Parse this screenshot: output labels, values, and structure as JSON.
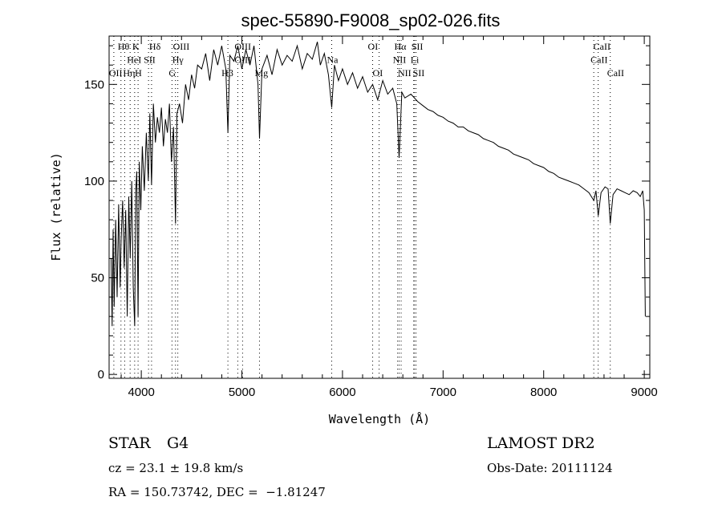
{
  "chart_data": {
    "type": "line",
    "title": "spec-55890-F9008_sp02-026.fits",
    "xlabel": "Wavelength (Å)",
    "ylabel": "Flux (relative)",
    "xlim": [
      3680,
      9055
    ],
    "ylim": [
      -2,
      175
    ],
    "xticks": [
      4000,
      5000,
      6000,
      7000,
      8000,
      9000
    ],
    "yticks": [
      0,
      50,
      100,
      150
    ],
    "grid": false,
    "series": [
      {
        "name": "flux",
        "x": [
          3700,
          3710,
          3720,
          3730,
          3745,
          3760,
          3775,
          3790,
          3800,
          3815,
          3830,
          3845,
          3860,
          3875,
          3890,
          3905,
          3920,
          3934,
          3945,
          3955,
          3968,
          3980,
          3995,
          4010,
          4030,
          4050,
          4070,
          4085,
          4102,
          4120,
          4140,
          4160,
          4180,
          4200,
          4220,
          4240,
          4260,
          4280,
          4300,
          4320,
          4340,
          4355,
          4380,
          4410,
          4440,
          4470,
          4500,
          4530,
          4560,
          4600,
          4640,
          4680,
          4720,
          4760,
          4800,
          4840,
          4861,
          4880,
          4920,
          4960,
          5000,
          5040,
          5080,
          5120,
          5160,
          5175,
          5200,
          5250,
          5300,
          5350,
          5400,
          5450,
          5500,
          5550,
          5600,
          5650,
          5700,
          5750,
          5780,
          5820,
          5860,
          5893,
          5920,
          5960,
          6000,
          6050,
          6100,
          6150,
          6200,
          6250,
          6300,
          6350,
          6400,
          6450,
          6500,
          6540,
          6563,
          6590,
          6620,
          6680,
          6750,
          6800,
          6850,
          6900,
          6950,
          7000,
          7050,
          7100,
          7150,
          7200,
          7250,
          7300,
          7350,
          7400,
          7450,
          7500,
          7550,
          7600,
          7650,
          7700,
          7750,
          7800,
          7850,
          7900,
          7950,
          8000,
          8050,
          8100,
          8150,
          8200,
          8250,
          8300,
          8350,
          8400,
          8450,
          8498,
          8520,
          8542,
          8570,
          8610,
          8640,
          8662,
          8690,
          8730,
          8770,
          8810,
          8850,
          8890,
          8930,
          8960,
          8985,
          9000,
          9010
        ],
        "values": [
          60,
          25,
          75,
          35,
          80,
          40,
          88,
          45,
          70,
          90,
          55,
          85,
          30,
          92,
          60,
          100,
          45,
          25,
          95,
          105,
          30,
          110,
          85,
          118,
          95,
          125,
          100,
          135,
          98,
          140,
          120,
          133,
          125,
          138,
          118,
          132,
          125,
          140,
          110,
          128,
          78,
          135,
          140,
          130,
          150,
          142,
          155,
          148,
          160,
          158,
          166,
          152,
          168,
          160,
          170,
          158,
          125,
          165,
          162,
          170,
          158,
          168,
          160,
          170,
          150,
          122,
          158,
          165,
          155,
          168,
          160,
          165,
          162,
          170,
          158,
          166,
          163,
          172,
          160,
          166,
          155,
          138,
          160,
          152,
          158,
          150,
          156,
          148,
          154,
          146,
          150,
          142,
          152,
          145,
          148,
          140,
          112,
          146,
          143,
          145,
          141,
          139,
          137,
          136,
          134,
          133,
          131,
          130,
          128,
          128,
          126,
          125,
          124,
          122,
          121,
          120,
          118,
          117,
          116,
          114,
          113,
          112,
          111,
          109,
          108,
          107,
          105,
          104,
          102,
          101,
          100,
          99,
          98,
          96,
          94,
          90,
          95,
          82,
          94,
          97,
          96,
          78,
          93,
          96,
          95,
          94,
          93,
          95,
          94,
          92,
          95,
          85,
          30
        ]
      }
    ],
    "line_markers": [
      {
        "name": "OII",
        "wave": 3727
      },
      {
        "name": "Hθ",
        "wave": 3798
      },
      {
        "name": "Hη",
        "wave": 3835
      },
      {
        "name": "HeI",
        "wave": 3889
      },
      {
        "name": "K",
        "wave": 3934
      },
      {
        "name": "H",
        "wave": 3968
      },
      {
        "name": "SII",
        "wave": 4072
      },
      {
        "name": "Hδ",
        "wave": 4102
      },
      {
        "name": "G",
        "wave": 4305
      },
      {
        "name": "Hγ",
        "wave": 4340
      },
      {
        "name": "OIII",
        "wave": 4363
      },
      {
        "name": "Hβ",
        "wave": 4861
      },
      {
        "name": "OIII",
        "wave": 4959
      },
      {
        "name": "OIII",
        "wave": 5007
      },
      {
        "name": "Mg",
        "wave": 5175
      },
      {
        "name": "Na",
        "wave": 5893
      },
      {
        "name": "OI",
        "wave": 6300
      },
      {
        "name": "OI",
        "wave": 6364
      },
      {
        "name": "NII",
        "wave": 6548
      },
      {
        "name": "Hα",
        "wave": 6563
      },
      {
        "name": "NII",
        "wave": 6583
      },
      {
        "name": "Li",
        "wave": 6708
      },
      {
        "name": "SII",
        "wave": 6716
      },
      {
        "name": "SII",
        "wave": 6731
      },
      {
        "name": "CaII",
        "wave": 8498
      },
      {
        "name": "CaII",
        "wave": 8542
      },
      {
        "name": "CaII",
        "wave": 8662
      }
    ]
  },
  "info": {
    "object_class": "STAR",
    "subclass": "G4",
    "cz": "cz = 23.1 ± 19.8 km/s",
    "coords": "RA = 150.73742, DEC =  −1.81247",
    "survey": "LAMOST DR2",
    "obs_date": "Obs-Date: 20111124"
  }
}
